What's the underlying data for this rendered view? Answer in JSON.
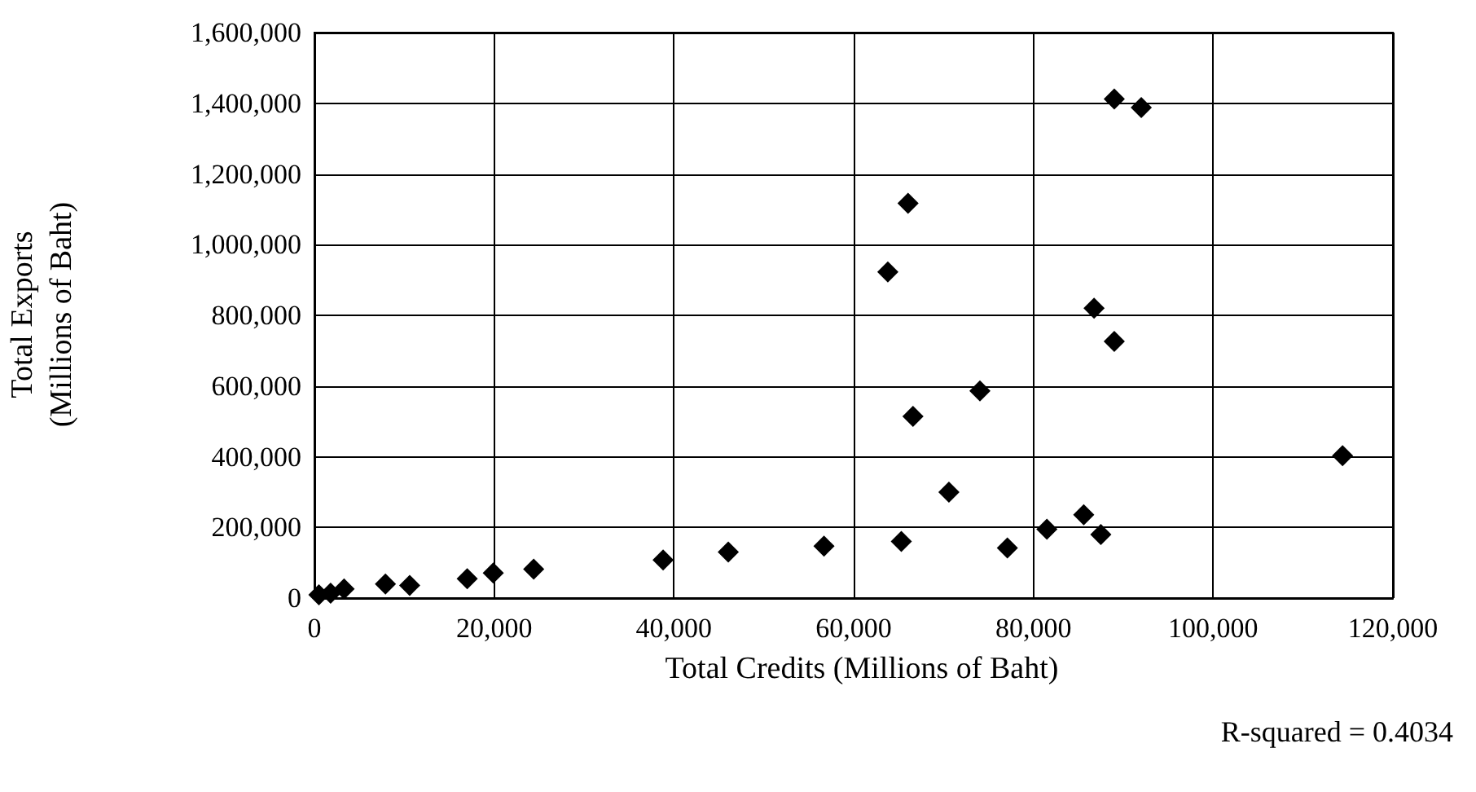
{
  "chart_data": {
    "type": "scatter",
    "xlabel": "Total Credits (Millions of Baht)",
    "ylabel": "Total Exports\n(Millions of Baht)",
    "annotations": [
      "R-squared = 0.4034"
    ],
    "x": [
      500,
      1800,
      3300,
      7900,
      10600,
      17000,
      19900,
      24400,
      38800,
      46050,
      56700,
      65300,
      77100,
      87500,
      81500,
      85600,
      70600,
      114400,
      66600,
      74050,
      89000,
      86750,
      63800,
      66050,
      92000,
      89000
    ],
    "values": [
      9000,
      14000,
      26000,
      40000,
      36000,
      55000,
      71000,
      82000,
      108000,
      130000,
      147000,
      160000,
      142000,
      180000,
      195000,
      236000,
      300000,
      403000,
      514000,
      586000,
      726000,
      820000,
      923000,
      1117000,
      1388000,
      1412000
    ],
    "color": "#000000",
    "marker": "diamond",
    "grid": true,
    "xlim": [
      0,
      120000
    ],
    "xticks": [
      0,
      {
        "value": 20000,
        "label": "20,000"
      },
      {
        "value": 40000,
        "label": "40,000"
      },
      {
        "value": 60000,
        "label": "60,000"
      },
      {
        "value": 80000,
        "label": "80,000"
      },
      {
        "value": 100000,
        "label": "100,000"
      },
      {
        "value": 120000,
        "label": "120,000"
      }
    ],
    "ylim": [
      0,
      1600000
    ],
    "yticks": [
      0,
      {
        "value": 200000,
        "label": "200,000"
      },
      {
        "value": 400000,
        "label": "400,000"
      },
      {
        "value": 600000,
        "label": "600,000"
      },
      {
        "value": 800000,
        "label": "800,000"
      },
      {
        "value": 1000000,
        "label": "1,000,000"
      },
      {
        "value": 1200000,
        "label": "1,200,000"
      },
      {
        "value": 1400000,
        "label": "1,400,000"
      },
      {
        "value": 1600000,
        "label": "1,600,000"
      }
    ]
  }
}
